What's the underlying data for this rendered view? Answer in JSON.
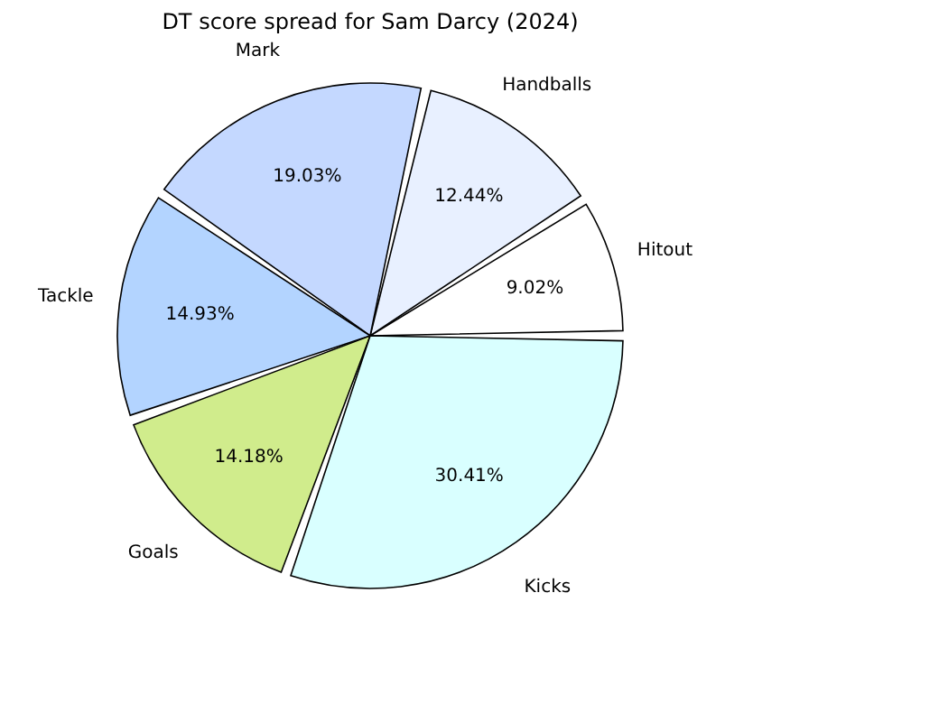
{
  "chart_data": {
    "type": "pie",
    "title": "DT score spread for Sam Darcy (2024)",
    "categories": [
      "Hitout",
      "Handballs",
      "Mark",
      "Tackle",
      "Goals",
      "Kicks"
    ],
    "values": [
      9.02,
      12.44,
      19.03,
      14.93,
      14.18,
      30.41
    ],
    "value_labels": [
      "9.02%",
      "12.44%",
      "19.03%",
      "14.93%",
      "14.18%",
      "30.41%"
    ],
    "colors": [
      "#ffffff",
      "#e8f0ff",
      "#c4d8ff",
      "#b3d4ff",
      "#d0ec8c",
      "#d9ffff"
    ]
  }
}
